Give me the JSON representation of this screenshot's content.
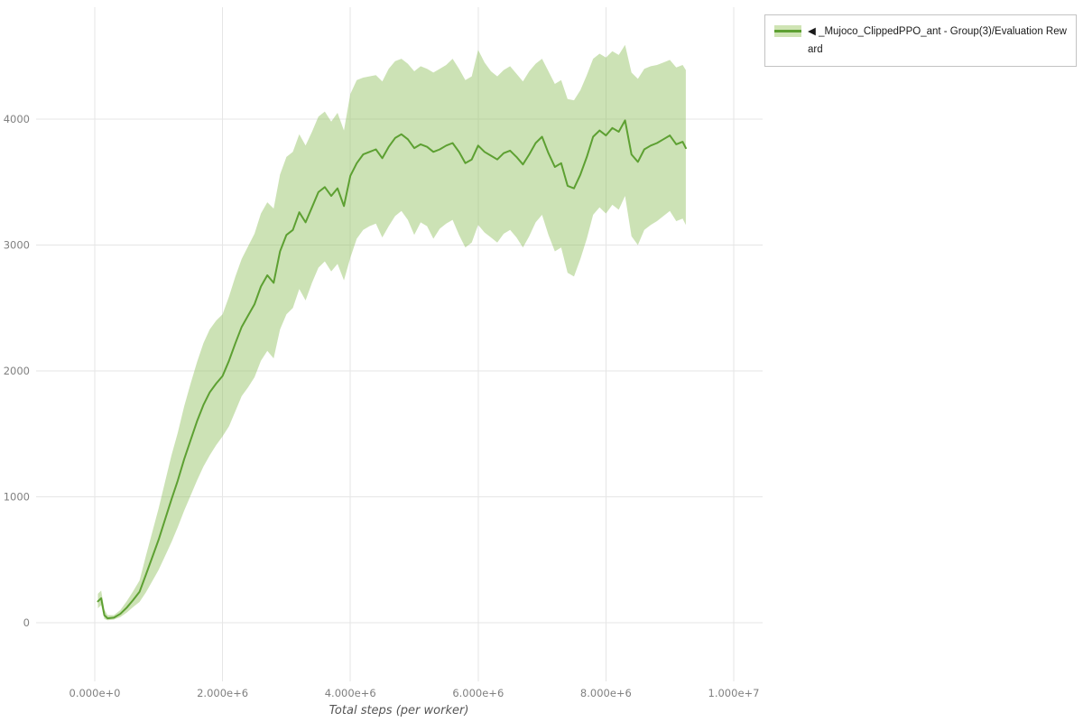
{
  "legend": {
    "marker": "◀",
    "label": "_Mujoco_ClippedPPO_ant - Group(3)/Evaluation Reward"
  },
  "chart_data": {
    "type": "line",
    "title": "",
    "xlabel": "Total steps (per worker)",
    "ylabel": "",
    "series_name": "_Mujoco_ClippedPPO_ant - Group(3)/Evaluation Reward",
    "legend_position": "top-right",
    "grid": true,
    "xlim": [
      -918000,
      10452000
    ],
    "ylim": [
      -466,
      4889
    ],
    "x_tick_values": [
      0,
      2000000,
      4000000,
      6000000,
      8000000,
      10000000
    ],
    "x_tick_labels": [
      "0.000e+0",
      "2.000e+6",
      "4.000e+6",
      "6.000e+6",
      "8.000e+6",
      "1.000e+7"
    ],
    "y_tick_values": [
      0,
      1000,
      2000,
      3000,
      4000
    ],
    "y_tick_labels": [
      "0",
      "1000",
      "2000",
      "3000",
      "4000"
    ],
    "x_unit_multiplier": 1000000,
    "x_millions": [
      0.05,
      0.1,
      0.15,
      0.2,
      0.3,
      0.4,
      0.5,
      0.6,
      0.7,
      0.8,
      0.9,
      1.0,
      1.1,
      1.2,
      1.3,
      1.4,
      1.5,
      1.6,
      1.7,
      1.8,
      1.9,
      2.0,
      2.1,
      2.2,
      2.3,
      2.4,
      2.5,
      2.6,
      2.7,
      2.8,
      2.9,
      3.0,
      3.1,
      3.2,
      3.3,
      3.4,
      3.5,
      3.6,
      3.7,
      3.8,
      3.9,
      4.0,
      4.1,
      4.2,
      4.3,
      4.4,
      4.5,
      4.6,
      4.7,
      4.8,
      4.9,
      5.0,
      5.1,
      5.2,
      5.3,
      5.4,
      5.5,
      5.6,
      5.7,
      5.8,
      5.9,
      6.0,
      6.1,
      6.2,
      6.3,
      6.4,
      6.5,
      6.6,
      6.7,
      6.8,
      6.9,
      7.0,
      7.1,
      7.2,
      7.3,
      7.4,
      7.5,
      7.6,
      7.7,
      7.8,
      7.9,
      8.0,
      8.1,
      8.2,
      8.3,
      8.4,
      8.5,
      8.6,
      8.7,
      8.8,
      8.9,
      9.0,
      9.1,
      9.2,
      9.25
    ],
    "mean": [
      170,
      195,
      60,
      35,
      40,
      70,
      120,
      180,
      245,
      380,
      520,
      660,
      820,
      980,
      1130,
      1300,
      1450,
      1600,
      1730,
      1830,
      1900,
      1960,
      2080,
      2220,
      2350,
      2440,
      2530,
      2670,
      2760,
      2700,
      2950,
      3080,
      3120,
      3260,
      3180,
      3300,
      3420,
      3460,
      3390,
      3450,
      3310,
      3550,
      3650,
      3720,
      3740,
      3760,
      3690,
      3780,
      3850,
      3880,
      3840,
      3770,
      3800,
      3780,
      3740,
      3760,
      3790,
      3810,
      3740,
      3650,
      3680,
      3790,
      3740,
      3710,
      3680,
      3730,
      3750,
      3700,
      3640,
      3720,
      3810,
      3860,
      3730,
      3620,
      3650,
      3470,
      3450,
      3560,
      3700,
      3860,
      3910,
      3870,
      3930,
      3900,
      3990,
      3720,
      3660,
      3760,
      3790,
      3810,
      3840,
      3870,
      3800,
      3820,
      3770
    ],
    "lower": [
      115,
      140,
      30,
      20,
      25,
      45,
      80,
      125,
      165,
      240,
      330,
      420,
      530,
      640,
      760,
      890,
      1010,
      1130,
      1240,
      1330,
      1410,
      1480,
      1560,
      1680,
      1800,
      1870,
      1950,
      2080,
      2160,
      2100,
      2330,
      2450,
      2500,
      2650,
      2560,
      2700,
      2820,
      2870,
      2790,
      2850,
      2720,
      2900,
      3050,
      3120,
      3150,
      3170,
      3060,
      3150,
      3230,
      3270,
      3200,
      3080,
      3180,
      3150,
      3050,
      3130,
      3170,
      3200,
      3080,
      2980,
      3020,
      3160,
      3100,
      3060,
      3020,
      3090,
      3120,
      3060,
      2980,
      3070,
      3180,
      3240,
      3080,
      2950,
      2980,
      2780,
      2750,
      2890,
      3050,
      3240,
      3300,
      3250,
      3320,
      3280,
      3390,
      3070,
      3000,
      3120,
      3160,
      3190,
      3230,
      3270,
      3190,
      3210,
      3160
    ],
    "upper": [
      230,
      255,
      105,
      60,
      60,
      100,
      170,
      250,
      335,
      530,
      720,
      910,
      1120,
      1330,
      1510,
      1720,
      1900,
      2070,
      2220,
      2330,
      2400,
      2450,
      2590,
      2750,
      2890,
      2990,
      3090,
      3250,
      3340,
      3290,
      3560,
      3700,
      3740,
      3880,
      3790,
      3900,
      4020,
      4060,
      3980,
      4050,
      3910,
      4200,
      4310,
      4330,
      4340,
      4350,
      4300,
      4400,
      4460,
      4480,
      4440,
      4380,
      4420,
      4400,
      4370,
      4400,
      4430,
      4480,
      4400,
      4310,
      4340,
      4550,
      4450,
      4380,
      4340,
      4390,
      4420,
      4360,
      4300,
      4380,
      4440,
      4480,
      4380,
      4280,
      4310,
      4160,
      4150,
      4230,
      4350,
      4480,
      4520,
      4490,
      4540,
      4510,
      4590,
      4370,
      4320,
      4400,
      4420,
      4430,
      4450,
      4470,
      4410,
      4430,
      4390
    ],
    "colors": {
      "line": "#5da032",
      "band": "#8fbf5a",
      "band_opacity": 0.45,
      "legend_swatch_bg": "#cfe4b4",
      "grid": "#e6e6e6",
      "tick_text": "#808080",
      "axis_label_text": "#555555",
      "legend_border": "#c3c3c3"
    }
  }
}
